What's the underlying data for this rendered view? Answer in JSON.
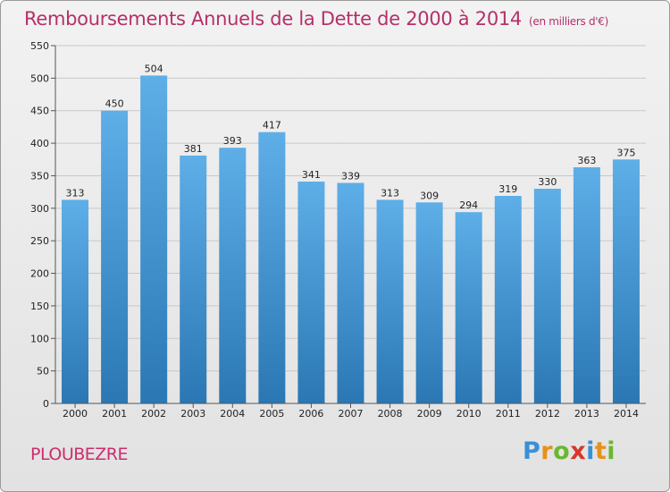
{
  "title": "Remboursements Annuels de la Dette de 2000 à 2014",
  "unit": "(en milliers d'€)",
  "commune": "PLOUBEZRE",
  "logo": {
    "letters": [
      {
        "ch": "P",
        "color": "#3a8fd6"
      },
      {
        "ch": "r",
        "color": "#e8901a"
      },
      {
        "ch": "o",
        "color": "#6ab82e"
      },
      {
        "ch": "x",
        "color": "#d8362c"
      },
      {
        "ch": "i",
        "color": "#3a8fd6"
      },
      {
        "ch": "t",
        "color": "#e8901a"
      },
      {
        "ch": "i",
        "color": "#6ab82e"
      }
    ]
  },
  "colors": {
    "bar_top": "#5eaee8",
    "bar_bottom": "#2a77b4",
    "grid": "#c8c8c8"
  },
  "chart_data": {
    "type": "bar",
    "title": "Remboursements Annuels de la Dette de 2000 à 2014",
    "xlabel": "",
    "ylabel": "",
    "categories": [
      "2000",
      "2001",
      "2002",
      "2003",
      "2004",
      "2005",
      "2006",
      "2007",
      "2008",
      "2009",
      "2010",
      "2011",
      "2012",
      "2013",
      "2014"
    ],
    "values": [
      313,
      450,
      504,
      381,
      393,
      417,
      341,
      339,
      313,
      309,
      294,
      319,
      330,
      363,
      375
    ],
    "ylim": [
      0,
      550
    ],
    "yticks": [
      0,
      50,
      100,
      150,
      200,
      250,
      300,
      350,
      400,
      450,
      500,
      550
    ],
    "grid": true
  }
}
